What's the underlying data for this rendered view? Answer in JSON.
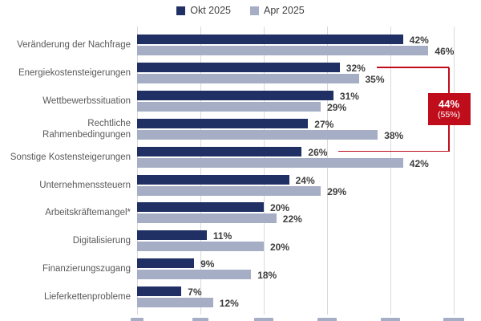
{
  "legend": {
    "items": [
      {
        "label": "Okt 2025",
        "color": "#203064"
      },
      {
        "label": "Apr 2025",
        "color": "#a6aec5"
      }
    ]
  },
  "chart_data": {
    "type": "bar",
    "orientation": "horizontal",
    "title": "",
    "categories": [
      "Veränderung der Nachfrage",
      "Energiekostensteigerungen",
      "Wettbewerbssituation",
      "Rechtliche\nRahmenbedingungen",
      "Sonstige Kostensteigerungen",
      "Unternehmenssteuern",
      "Arbeitskräftemangel*",
      "Digitalisierung",
      "Finanzierungszugang",
      "Lieferkettenprobleme"
    ],
    "series": [
      {
        "name": "Okt 2025",
        "color": "#203064",
        "values": [
          42,
          32,
          31,
          27,
          26,
          24,
          20,
          11,
          9,
          7
        ]
      },
      {
        "name": "Apr 2025",
        "color": "#a6aec5",
        "values": [
          46,
          35,
          29,
          38,
          42,
          29,
          22,
          20,
          18,
          12
        ]
      }
    ],
    "value_suffix": "%",
    "xlim": [
      0,
      50
    ],
    "grid_step": 10,
    "grid": true,
    "legend_position": "top"
  },
  "callout": {
    "value": "44%",
    "sub": "(55%)",
    "box_color": "#c00d1c",
    "text_color": "#ffffff",
    "line_color": "#c00d1c",
    "connects_series": "Okt 2025",
    "connect_indices": [
      1,
      4
    ],
    "connects_categories": [
      "Energiekostensteigerungen",
      "Sonstige Kostensteigerungen"
    ]
  },
  "colors": {
    "gridline": "#d9d9d9",
    "category_label": "#595959",
    "value_label": "#3d3d3d",
    "cropped_sliver": "#a6aec5"
  }
}
